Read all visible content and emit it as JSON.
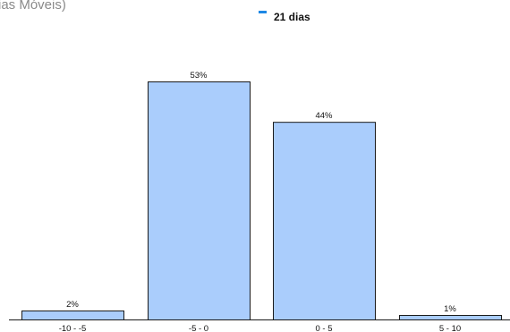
{
  "title_fragment": "ias Móveis)",
  "chart_data": {
    "type": "bar",
    "categories": [
      "-10 - -5",
      "-5 - 0",
      "0 - 5",
      "5 - 10"
    ],
    "series": [
      {
        "name": "21 dias",
        "values": [
          2,
          53,
          44,
          1
        ],
        "labels": [
          "2%",
          "53%",
          "44%",
          "1%"
        ]
      }
    ],
    "ylim": [
      0,
      60
    ],
    "grid": false,
    "legend_position": "top-right",
    "colors": {
      "bar_fill": "#aacdfc",
      "legend_marker": "#1e88e5"
    }
  }
}
